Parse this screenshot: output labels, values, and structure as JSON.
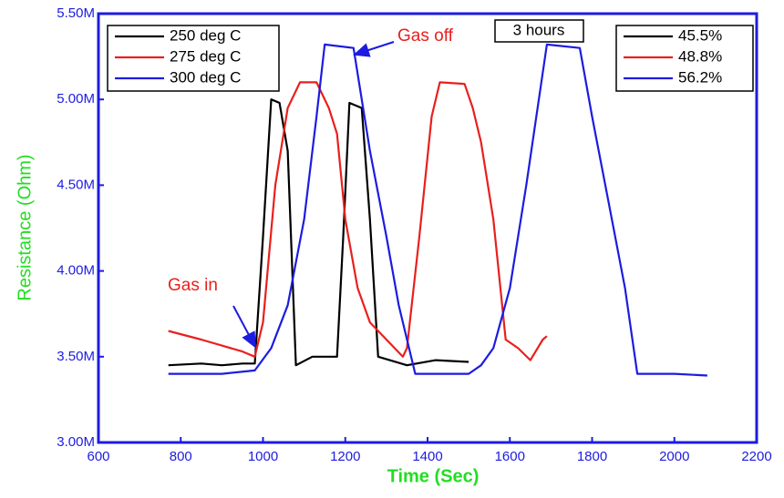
{
  "chart_data": {
    "type": "line",
    "xlabel": "Time (Sec)",
    "ylabel": "Resistance (Ohm)",
    "xlim": [
      600,
      2200
    ],
    "xticks": [
      600,
      800,
      1000,
      1200,
      1400,
      1600,
      1800,
      2000,
      2200
    ],
    "ylim": [
      3000000,
      5500000
    ],
    "yticks": [
      {
        "value": 3000000,
        "label": "3.00M"
      },
      {
        "value": 3500000,
        "label": "3.50M"
      },
      {
        "value": 4000000,
        "label": "4.00M"
      },
      {
        "value": 4500000,
        "label": "4.50M"
      },
      {
        "value": 5000000,
        "label": "5.00M"
      },
      {
        "value": 5500000,
        "label": "5.50M"
      }
    ],
    "series": [
      {
        "name": "250 deg C",
        "color": "#000000",
        "x": [
          770,
          850,
          900,
          950,
          980,
          1000,
          1020,
          1040,
          1060,
          1080,
          1120,
          1180,
          1195,
          1210,
          1240,
          1260,
          1280,
          1350,
          1420,
          1500
        ],
        "values": [
          3450000,
          3460000,
          3450000,
          3460000,
          3460000,
          4200000,
          5000000,
          4980000,
          4700000,
          3450000,
          3500000,
          3500000,
          4200000,
          4980000,
          4950000,
          4300000,
          3500000,
          3450000,
          3480000,
          3470000
        ]
      },
      {
        "name": "275 deg C",
        "color": "#e8201e",
        "x": [
          770,
          850,
          950,
          980,
          1000,
          1030,
          1060,
          1090,
          1130,
          1160,
          1180,
          1200,
          1230,
          1260,
          1300,
          1340,
          1350,
          1380,
          1410,
          1430,
          1490,
          1510,
          1530,
          1560,
          1590,
          1620,
          1650,
          1680,
          1690
        ],
        "values": [
          3650000,
          3600000,
          3530000,
          3500000,
          3700000,
          4500000,
          4950000,
          5100000,
          5100000,
          4950000,
          4800000,
          4300000,
          3900000,
          3700000,
          3600000,
          3500000,
          3550000,
          4200000,
          4900000,
          5100000,
          5090000,
          4950000,
          4750000,
          4300000,
          3600000,
          3550000,
          3480000,
          3600000,
          3620000
        ]
      },
      {
        "name": "300 deg C",
        "color": "#1c1ce0",
        "x": [
          770,
          900,
          980,
          1020,
          1060,
          1100,
          1130,
          1150,
          1220,
          1260,
          1300,
          1330,
          1370,
          1500,
          1530,
          1560,
          1600,
          1640,
          1690,
          1770,
          1800,
          1840,
          1880,
          1910,
          2000,
          2080
        ],
        "values": [
          3400000,
          3400000,
          3420000,
          3550000,
          3800000,
          4300000,
          4900000,
          5320000,
          5300000,
          4700000,
          4200000,
          3800000,
          3400000,
          3400000,
          3450000,
          3550000,
          3900000,
          4500000,
          5320000,
          5300000,
          4900000,
          4400000,
          3900000,
          3400000,
          3400000,
          3390000
        ]
      }
    ],
    "legend2": [
      "45.5%",
      "48.8%",
      "56.2%"
    ],
    "annotations": [
      "Gas off",
      "3 hours",
      "Gas in"
    ]
  }
}
